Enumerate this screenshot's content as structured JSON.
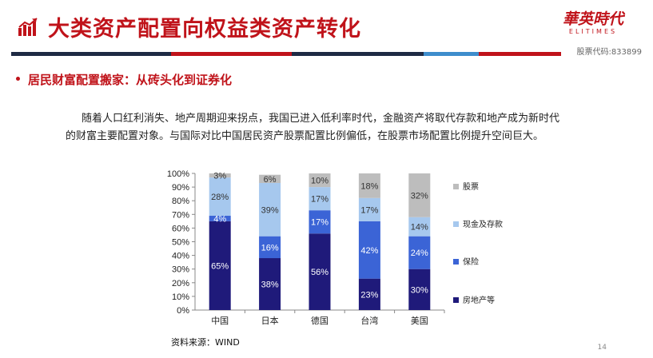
{
  "header": {
    "title": "大类资产配置向权益类资产转化",
    "brand_cn": "華英時代",
    "brand_en": "ELITIMES",
    "stock_code": "股票代码:833899"
  },
  "section": {
    "heading": "居民财富配置搬家：从砖头化到证券化"
  },
  "body_text": {
    "line1": "随着人口红利消失、地产周期迎来拐点，我国已进入低利率时代，金融资产将取代存款和地产成为新时代",
    "line2": "的财富主要配置对象。与国际对比中国居民资产股票配置比例偏低，在股票市场配置比例提升空间巨大。"
  },
  "chart_data": {
    "type": "bar",
    "stacked": true,
    "categories": [
      "中国",
      "日本",
      "德国",
      "台湾",
      "美国"
    ],
    "series": [
      {
        "name": "房地产等",
        "values": [
          65,
          38,
          56,
          23,
          30
        ],
        "color": "#1f1a7a",
        "label_color": "#ffffff"
      },
      {
        "name": "保险",
        "values": [
          4,
          16,
          17,
          42,
          24
        ],
        "color": "#3b64d6",
        "label_color": "#ffffff"
      },
      {
        "name": "现金及存款",
        "values": [
          28,
          39,
          17,
          17,
          14
        ],
        "color": "#a6c8ee",
        "label_color": "#333333"
      },
      {
        "name": "股票",
        "values": [
          3,
          6,
          10,
          18,
          32
        ],
        "color": "#bdbdbd",
        "label_color": "#333333"
      }
    ],
    "ylim": [
      0,
      100
    ],
    "yticks": [
      "0%",
      "10%",
      "20%",
      "30%",
      "40%",
      "50%",
      "60%",
      "70%",
      "80%",
      "90%",
      "100%"
    ],
    "legend_position": "right",
    "label_suffix": "%"
  },
  "source": "资料来源：WIND",
  "page_number": "14",
  "colors": {
    "accent": "#c0131a",
    "divider": [
      "#1e2a44",
      "#c0131a",
      "#1e2a44",
      "#3e8dcc",
      "#c0131a"
    ]
  }
}
